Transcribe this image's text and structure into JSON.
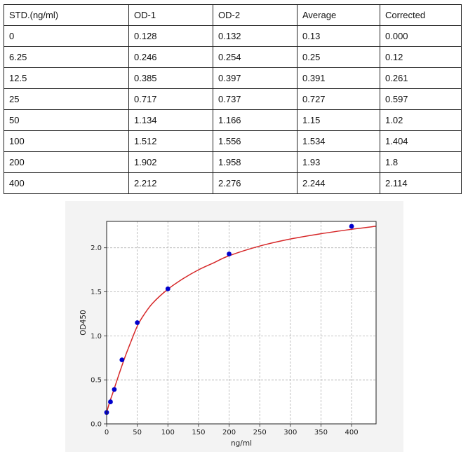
{
  "table": {
    "headers": [
      "STD.(ng/ml)",
      "OD-1",
      "OD-2",
      "Average",
      "Corrected"
    ],
    "rows": [
      [
        "0",
        "0.128",
        "0.132",
        "0.13",
        "0.000"
      ],
      [
        "6.25",
        "0.246",
        "0.254",
        "0.25",
        "0.12"
      ],
      [
        "12.5",
        "0.385",
        "0.397",
        "0.391",
        "0.261"
      ],
      [
        "25",
        "0.717",
        "0.737",
        "0.727",
        "0.597"
      ],
      [
        "50",
        "1.134",
        "1.166",
        "1.15",
        "1.02"
      ],
      [
        "100",
        "1.512",
        "1.556",
        "1.534",
        "1.404"
      ],
      [
        "200",
        "1.902",
        "1.958",
        "1.93",
        "1.8"
      ],
      [
        "400",
        "2.212",
        "2.276",
        "2.244",
        "2.114"
      ]
    ]
  },
  "chart_data": {
    "type": "scatter",
    "title": "",
    "xlabel": "ng/ml",
    "ylabel": "OD450",
    "xlim": [
      0,
      440
    ],
    "ylim": [
      0,
      2.3
    ],
    "xticks": [
      0,
      50,
      100,
      150,
      200,
      250,
      300,
      350,
      400
    ],
    "yticks": [
      0.0,
      0.5,
      1.0,
      1.5,
      2.0
    ],
    "xtick_labels": [
      "0",
      "50",
      "100",
      "150",
      "200",
      "250",
      "300",
      "350",
      "400"
    ],
    "ytick_labels": [
      "0.0",
      "0.5",
      "1.0",
      "1.5",
      "2.0"
    ],
    "grid": true,
    "series": [
      {
        "kind": "points",
        "color": "#0000cc",
        "x": [
          0,
          6.25,
          12.5,
          25,
          50,
          100,
          200,
          400
        ],
        "y": [
          0.13,
          0.25,
          0.391,
          0.727,
          1.15,
          1.534,
          1.93,
          2.244
        ]
      },
      {
        "kind": "fit-curve",
        "color": "#d62728",
        "x": [
          0,
          5,
          10,
          20,
          30,
          40,
          50,
          60,
          75,
          100,
          125,
          150,
          175,
          200,
          250,
          300,
          350,
          400,
          440
        ],
        "y": [
          0.13,
          0.25,
          0.35,
          0.56,
          0.76,
          0.94,
          1.11,
          1.23,
          1.37,
          1.53,
          1.65,
          1.75,
          1.83,
          1.91,
          2.02,
          2.1,
          2.16,
          2.21,
          2.245
        ]
      }
    ]
  }
}
